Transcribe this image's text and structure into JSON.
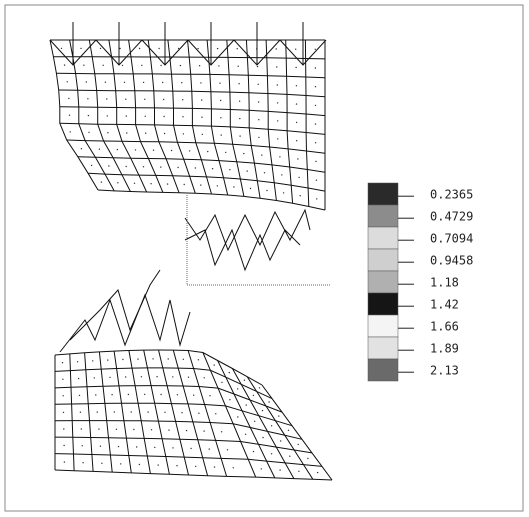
{
  "legend": {
    "items": [
      {
        "value": 0.2365,
        "color": "#2a2a2a"
      },
      {
        "value": 0.4729,
        "color": "#8c8c8c"
      },
      {
        "value": 0.7094,
        "color": "#dcdcdc"
      },
      {
        "value": 0.9458,
        "color": "#cfcfcf"
      },
      {
        "value": 1.18,
        "color": "#b0b0b0"
      },
      {
        "value": 1.42,
        "color": "#151515"
      },
      {
        "value": 1.66,
        "color": "#f4f4f4"
      },
      {
        "value": 1.89,
        "color": "#e2e2e2"
      },
      {
        "value": 2.13,
        "color": "#6a6a6a"
      }
    ]
  }
}
